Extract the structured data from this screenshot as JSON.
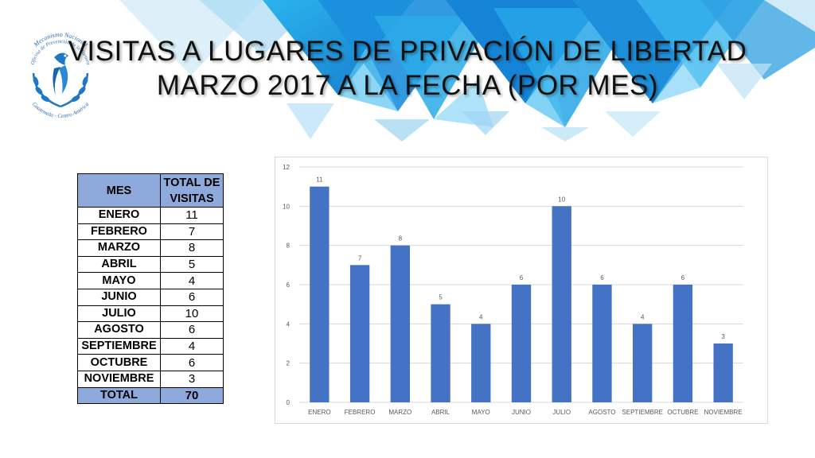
{
  "title": {
    "line1": "VISITAS A LUGARES DE PRIVACIÓN DE LIBERTAD",
    "line2": "MARZO 2017 A LA FECHA (POR MES)"
  },
  "logo": {
    "text_top": "Mecanismo Nacional",
    "text_middle": "Oficina de Prevención de la Tortura",
    "text_bottom": "Guatemala - Centro América"
  },
  "table": {
    "header_month": "MES",
    "header_total_line1": "TOTAL DE",
    "header_total_line2": "VISITAS",
    "rows": [
      {
        "month": "ENERO",
        "total": "11"
      },
      {
        "month": "FEBRERO",
        "total": "7"
      },
      {
        "month": "MARZO",
        "total": "8"
      },
      {
        "month": "ABRIL",
        "total": "5"
      },
      {
        "month": "MAYO",
        "total": "4"
      },
      {
        "month": "JUNIO",
        "total": "6"
      },
      {
        "month": "JULIO",
        "total": "10"
      },
      {
        "month": "AGOSTO",
        "total": "6"
      },
      {
        "month": "SEPTIEMBRE",
        "total": "4"
      },
      {
        "month": "OCTUBRE",
        "total": "6"
      },
      {
        "month": "NOVIEMBRE",
        "total": "3"
      }
    ],
    "total_label": "TOTAL",
    "total_value": "70"
  },
  "chart_data": {
    "type": "bar",
    "categories": [
      "ENERO",
      "FEBRERO",
      "MARZO",
      "ABRIL",
      "MAYO",
      "JUNIO",
      "JULIO",
      "AGOSTO",
      "SEPTIEMBRE",
      "OCTUBRE",
      "NOVIEMBRE"
    ],
    "values": [
      11,
      7,
      8,
      5,
      4,
      6,
      10,
      6,
      4,
      6,
      3
    ],
    "ylim": [
      0,
      12
    ],
    "yticks": [
      0,
      2,
      4,
      6,
      8,
      10,
      12
    ],
    "grid": true,
    "data_labels": true,
    "bar_color": "#4472C4"
  },
  "colors": {
    "header_fill": "#8EA9DB",
    "banner_blue": "#1E9BE0"
  }
}
